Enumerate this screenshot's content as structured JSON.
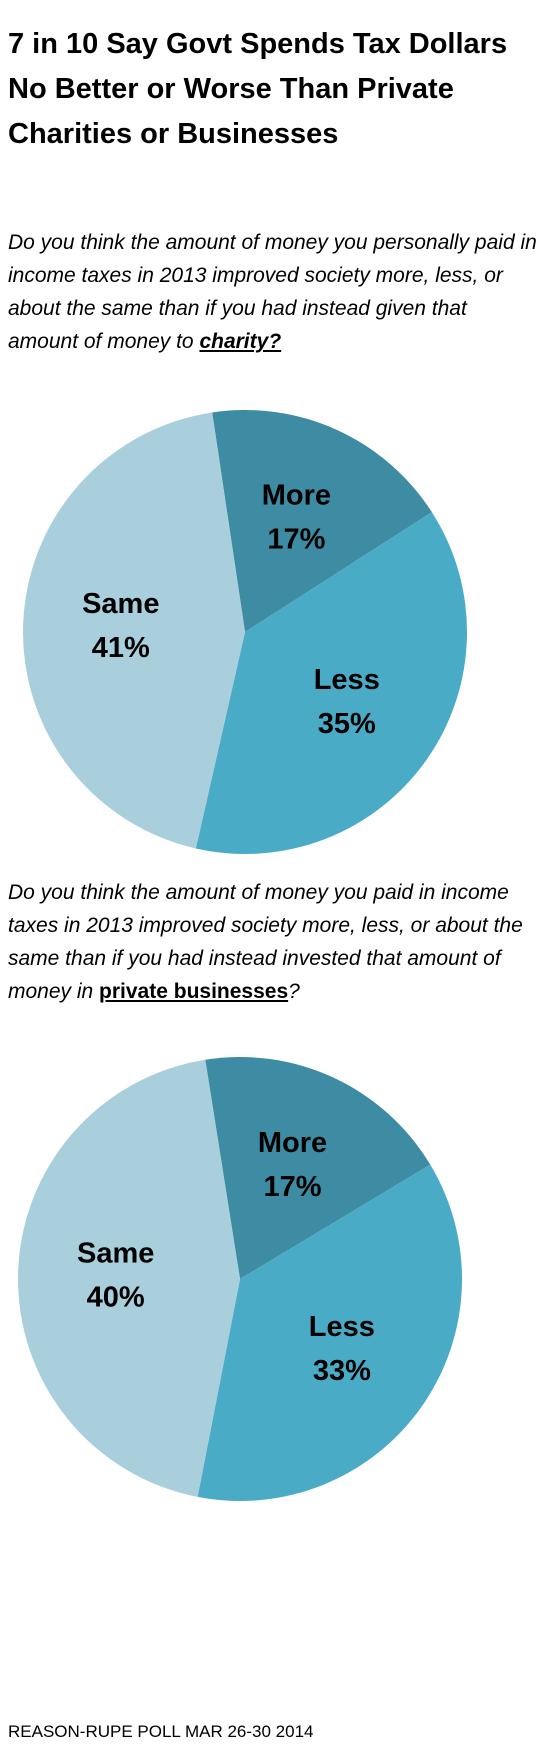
{
  "title": "7 in 10 Say Govt Spends Tax Dollars No Better or Worse Than Private Charities or Businesses",
  "source": "REASON-RUPE POLL MAR 26-30 2014",
  "chart_data": [
    {
      "type": "pie",
      "question": "Do you think the amount of money you personally paid in income taxes in 2013 improved society more, less, or about the same than if you had instead given that amount of money to ",
      "question_emphasis": "charity?",
      "categories": [
        "More",
        "Less",
        "Same"
      ],
      "values": [
        17,
        35,
        41
      ],
      "value_labels": [
        "17%",
        "35%",
        "41%"
      ],
      "colors": [
        "#3d8ca3",
        "#4aabc6",
        "#a9cfdc"
      ]
    },
    {
      "type": "pie",
      "question": "Do you think the amount of money you paid in income taxes in 2013 improved society more, less, or about the same than if you had instead invested that amount of money in ",
      "question_emphasis": "private businesses",
      "question_end": "?",
      "categories": [
        "More",
        "Less",
        "Same"
      ],
      "values": [
        17,
        33,
        40
      ],
      "value_labels": [
        "17%",
        "33%",
        "40%"
      ],
      "colors": [
        "#3d8ca3",
        "#4aabc6",
        "#a9cfdc"
      ]
    }
  ]
}
